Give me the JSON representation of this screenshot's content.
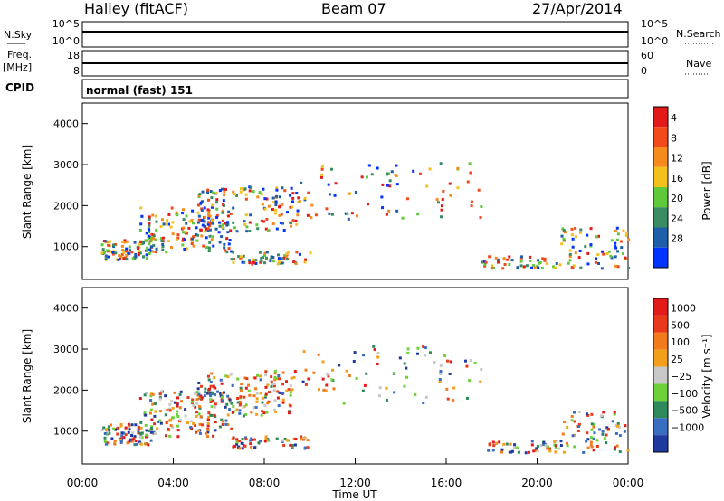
{
  "header": {
    "station": "Halley (fitACF)",
    "beam": "Beam 07",
    "date": "27/Apr/2014"
  },
  "top_panels": {
    "nsky": {
      "label": "N.Sky",
      "ticks_left": [
        "10^5",
        "10^0"
      ],
      "right_label": "N.Search",
      "ticks_right": [
        "10^5",
        "10^0"
      ]
    },
    "freq": {
      "label_line1": "Freq.",
      "label_line2": "[MHz]",
      "ticks_left": [
        "18",
        "8"
      ],
      "right_label": "Nave",
      "ticks_right": [
        "60",
        "0"
      ]
    },
    "cpid": {
      "label": "CPID",
      "text": "normal (fast) 151"
    }
  },
  "chart_data": [
    {
      "type": "heatmap",
      "title": "",
      "xlabel": "",
      "ylabel": "Slant Range [km]",
      "xlim": [
        0,
        24
      ],
      "ylim": [
        200,
        4500
      ],
      "yticks": [
        1000,
        2000,
        3000,
        4000
      ],
      "colorbar": {
        "label": "Power [dB]",
        "ticks": [
          "4",
          "8",
          "12",
          "16",
          "20",
          "24",
          "28"
        ],
        "colors": [
          "#0033ff",
          "#1f5ea8",
          "#3a8a64",
          "#5fc83b",
          "#f2c21a",
          "#f78a1c",
          "#f24a1a",
          "#e31a1a"
        ]
      }
    },
    {
      "type": "heatmap",
      "title": "",
      "xlabel": "Time UT",
      "ylabel": "Slant Range [km]",
      "xlim": [
        0,
        24
      ],
      "ylim": [
        200,
        4500
      ],
      "xticks": [
        "00:00",
        "04:00",
        "08:00",
        "12:00",
        "16:00",
        "20:00",
        "00:00"
      ],
      "yticks": [
        1000,
        2000,
        3000,
        4000
      ],
      "colorbar": {
        "label": "Velocity [m s⁻¹]",
        "ticks": [
          "1000",
          "500",
          "100",
          "25",
          "−25",
          "−100",
          "−500",
          "−1000"
        ],
        "colors": [
          "#1f3a9e",
          "#3a6ebf",
          "#2e8a5a",
          "#6fd13a",
          "#c8c8c8",
          "#f2a01a",
          "#f27a1a",
          "#e8391a",
          "#e31a1a"
        ]
      }
    }
  ]
}
